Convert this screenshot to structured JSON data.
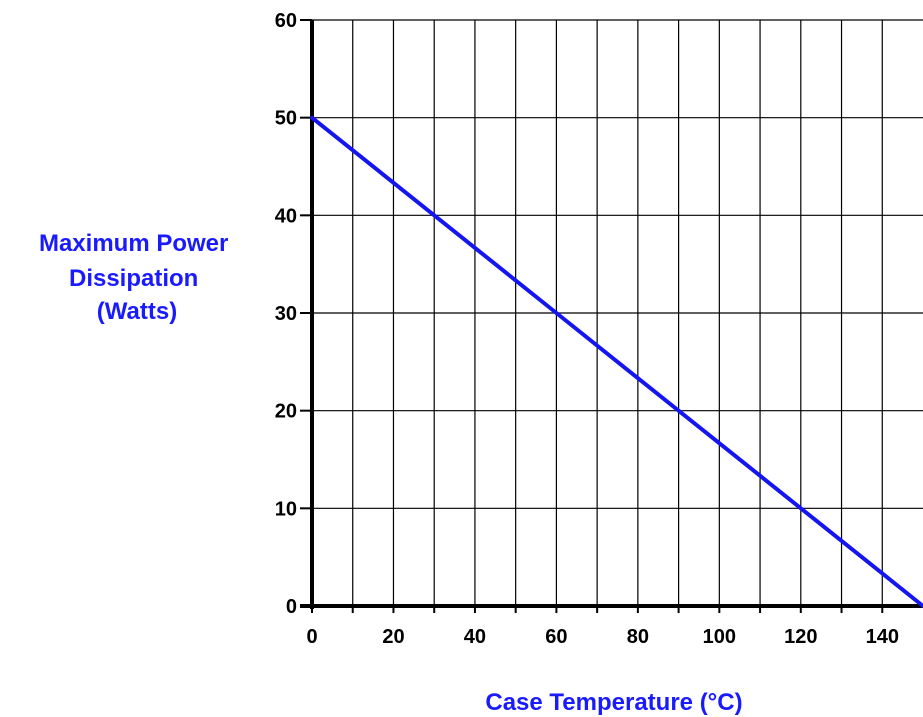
{
  "chart_data": {
    "type": "line",
    "title": "",
    "xlabel": "Case Temperature (°C)",
    "ylabel_lines": [
      "Maximum Power",
      "Dissipation",
      "(Watts)"
    ],
    "xlim": [
      0,
      150
    ],
    "ylim": [
      0,
      60
    ],
    "x_ticks": [
      0,
      20,
      40,
      60,
      80,
      100,
      120,
      140
    ],
    "x_tick_labels": [
      "0",
      "20",
      "40",
      "60",
      "80",
      "100",
      "120",
      "140"
    ],
    "x_gridlines": [
      10,
      20,
      30,
      40,
      50,
      60,
      70,
      80,
      90,
      100,
      110,
      120,
      130,
      140
    ],
    "y_ticks": [
      0,
      10,
      20,
      30,
      40,
      50,
      60
    ],
    "y_tick_labels": [
      "0",
      "10",
      "20",
      "30",
      "40",
      "50",
      "60"
    ],
    "grid": true,
    "series": [
      {
        "x": [
          0,
          30,
          60,
          90,
          120,
          150
        ],
        "y": [
          50,
          40,
          30,
          20,
          10,
          0
        ]
      }
    ],
    "colors": {
      "line": "#1515f0",
      "label": "#1a1aff",
      "grid": "#000000",
      "axis": "#000000"
    }
  }
}
